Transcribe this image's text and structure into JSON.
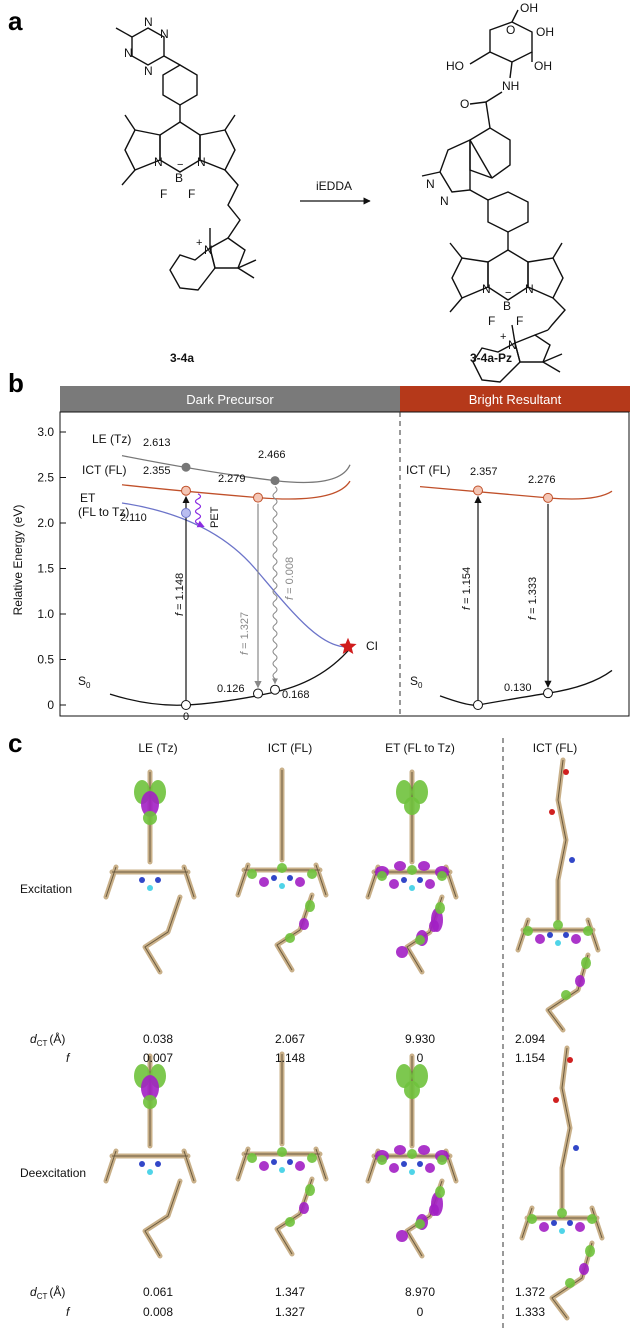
{
  "panels": {
    "a": "a",
    "b": "b",
    "c": "c"
  },
  "scheme": {
    "reactant_label": "3-4a",
    "product_label": "3-4a-Pz",
    "arrow_label": "iEDDA",
    "atoms_reactant": {
      "n": "N",
      "b": "B",
      "f": "F",
      "nplus": "N",
      "plus": "+",
      "minus": "−"
    },
    "atoms_product": {
      "oh": "OH",
      "ho": "HO",
      "o": "O",
      "nh": "NH",
      "n": "N",
      "b": "B",
      "f": "F",
      "nplus": "N",
      "plus": "+",
      "minus": "−"
    }
  },
  "energy_diagram": {
    "left_header": "Dark Precursor",
    "right_header": "Bright Resultant",
    "left_header_color": "#7a7a7a",
    "right_header_color": "#b5391a",
    "ylabel": "Relative Energy (eV)",
    "yticks": [
      "3.0",
      "2.5",
      "2.0",
      "1.5",
      "1.0",
      "0.5",
      "0"
    ],
    "ylim": [
      0,
      3.0
    ],
    "curves": [
      {
        "name": "LE (Tz)",
        "color": "#777777"
      },
      {
        "name": "ICT (FL)",
        "color": "#c0502a"
      },
      {
        "name": "ET",
        "sub": "(FL to Tz)",
        "color": "#6c74c9"
      },
      {
        "name": "S",
        "sub": "0",
        "color": "#111111"
      }
    ],
    "right_curves": [
      {
        "name": "ICT (FL)",
        "color": "#c0502a"
      },
      {
        "name": "S",
        "sub": "0",
        "color": "#111111"
      }
    ],
    "points_left": [
      {
        "value": "2.613",
        "energy": 2.613,
        "color": "#777777"
      },
      {
        "value": "2.466",
        "energy": 2.466,
        "color": "#777777"
      },
      {
        "value": "2.355",
        "energy": 2.355,
        "color": "#c0502a"
      },
      {
        "value": "2.279",
        "energy": 2.279,
        "color": "#c0502a"
      },
      {
        "value": "2.110",
        "energy": 2.11,
        "color": "#6c74c9"
      },
      {
        "value": "0",
        "energy": 0
      },
      {
        "value": "0.126",
        "energy": 0.126
      },
      {
        "value": "0.168",
        "energy": 0.168
      }
    ],
    "points_right": [
      {
        "value": "2.357",
        "energy": 2.357,
        "color": "#c0502a"
      },
      {
        "value": "2.276",
        "energy": 2.276,
        "color": "#c0502a"
      },
      {
        "value": "0.130",
        "energy": 0.13
      }
    ],
    "transitions_left": [
      {
        "f_label": "f",
        "value": "= 1.148",
        "color": "#111111"
      },
      {
        "f_label": "f",
        "value": "= 1.327",
        "color": "#888888"
      },
      {
        "f_label": "f",
        "value": "= 0.008",
        "color": "#888888"
      }
    ],
    "transitions_right": [
      {
        "f_label": "f",
        "value": "= 1.154"
      },
      {
        "f_label": "f",
        "value": "= 1.333"
      }
    ],
    "pet_label": "PET",
    "pet_color": "#8a2be2",
    "ci_label": "CI",
    "ci_color": "#d01c1c"
  },
  "orbital_table": {
    "columns": [
      "LE (Tz)",
      "ICT (FL)",
      "ET (FL to Tz)",
      "ICT (FL)"
    ],
    "rows": [
      {
        "label": "Excitation",
        "dct_label": "d",
        "dct_sub": "CT",
        "dct_unit": "(Å)",
        "dct": [
          "0.038",
          "2.067",
          "9.930",
          "2.094"
        ],
        "f_label": "f",
        "f": [
          "0.007",
          "1.148",
          "0",
          "1.154"
        ]
      },
      {
        "label": "Deexcitation",
        "dct_label": "d",
        "dct_sub": "CT",
        "dct_unit": "(Å)",
        "dct": [
          "0.061",
          "1.347",
          "8.970",
          "1.372"
        ],
        "f_label": "f",
        "f": [
          "0.008",
          "1.327",
          "0",
          "1.333"
        ]
      }
    ],
    "colors": {
      "lobe_green": "#6fc23c",
      "lobe_purple": "#a21fc4",
      "carbon": "#c9b089",
      "nitrogen": "#3247c8",
      "fluorine": "#4fd4e8",
      "oxygen": "#d02020"
    }
  }
}
